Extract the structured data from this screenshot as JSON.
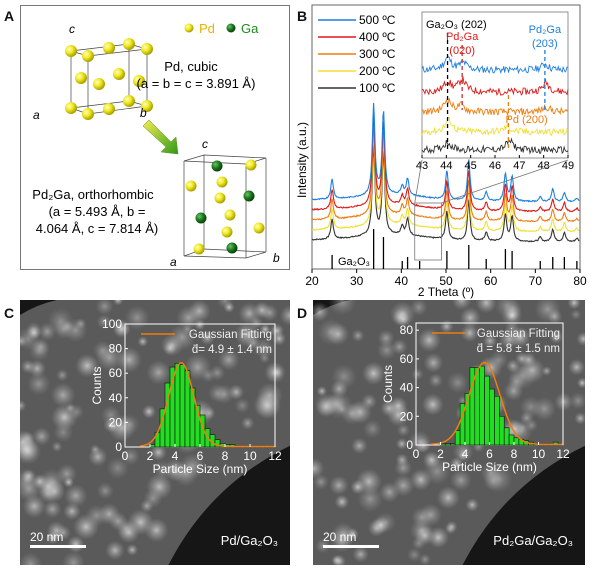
{
  "panel_labels": {
    "a": "A",
    "b": "B",
    "c": "C",
    "d": "D"
  },
  "panelA": {
    "legend": [
      {
        "label": "Pd",
        "color": "#f2d21c"
      },
      {
        "label": "Ga",
        "color": "#1e8a1e"
      }
    ],
    "pd_title": "Pd, cubic",
    "pd_params": "(a = b = c = 3.891 Å)",
    "pd2ga_title": "Pd₂Ga, orthorhombic",
    "pd2ga_params_1": "(a = 5.493 Å, b =",
    "pd2ga_params_2": "4.064 Å, c = 7.814 Å)",
    "axis_labels": {
      "a": "a",
      "b": "b",
      "c": "c"
    },
    "colors": {
      "pd": "#f2e81c",
      "ga": "#1e8a1e",
      "arrow_start": "#f0e040",
      "arrow_end": "#3a9a20"
    }
  },
  "chart_data": [
    {
      "id": "xrd",
      "type": "line",
      "title": "",
      "xlabel": "2 Theta (º)",
      "ylabel": "Intensity (a.u.)",
      "xlim": [
        20,
        80
      ],
      "xticks": [
        20,
        30,
        40,
        50,
        60,
        70,
        80
      ],
      "legend_position": "top-left",
      "series": [
        {
          "name": "500 ºC",
          "color": "#1f7fe0"
        },
        {
          "name": "400 ºC",
          "color": "#e01818"
        },
        {
          "name": "300 ºC",
          "color": "#f07d10"
        },
        {
          "name": "200 ºC",
          "color": "#f0e030"
        },
        {
          "name": "100 ºC",
          "color": "#333333"
        }
      ],
      "peaks": [
        {
          "x": 24.5,
          "h": 0.22
        },
        {
          "x": 33.8,
          "h": 1.0
        },
        {
          "x": 36.0,
          "h": 0.92
        },
        {
          "x": 40.2,
          "h": 0.1
        },
        {
          "x": 41.4,
          "h": 0.18
        },
        {
          "x": 50.2,
          "h": 0.32
        },
        {
          "x": 55.1,
          "h": 0.45
        },
        {
          "x": 59.0,
          "h": 0.1
        },
        {
          "x": 63.3,
          "h": 0.3
        },
        {
          "x": 64.8,
          "h": 0.28
        },
        {
          "x": 71.1,
          "h": 0.05
        },
        {
          "x": 73.9,
          "h": 0.14
        },
        {
          "x": 76.5,
          "h": 0.1
        },
        {
          "x": 79.3,
          "h": 0.04
        }
      ],
      "reference": {
        "name": "Ga₂O₃",
        "lines": [
          {
            "x": 24.5,
            "h": 0.35
          },
          {
            "x": 33.8,
            "h": 1.0
          },
          {
            "x": 36.0,
            "h": 0.8
          },
          {
            "x": 40.2,
            "h": 0.2
          },
          {
            "x": 41.4,
            "h": 0.3
          },
          {
            "x": 44.1,
            "h": 0.2
          },
          {
            "x": 50.2,
            "h": 0.45
          },
          {
            "x": 55.1,
            "h": 0.6
          },
          {
            "x": 59.0,
            "h": 0.25
          },
          {
            "x": 63.3,
            "h": 0.5
          },
          {
            "x": 64.8,
            "h": 0.45
          },
          {
            "x": 71.1,
            "h": 0.2
          },
          {
            "x": 73.9,
            "h": 0.3
          },
          {
            "x": 76.5,
            "h": 0.3
          },
          {
            "x": 79.3,
            "h": 0.2
          }
        ]
      },
      "zoom_box": {
        "x": [
          43,
          49
        ]
      }
    },
    {
      "id": "xrd-inset",
      "type": "line",
      "xlim": [
        43,
        49
      ],
      "xticks": [
        43,
        44,
        45,
        46,
        47,
        48,
        49
      ],
      "annotations": [
        {
          "text": "Ga₂O₃ (202)",
          "x": 44.05,
          "color": "#000000"
        },
        {
          "text": "Pd₂Ga (020)",
          "x": 44.65,
          "color": "#e01818"
        },
        {
          "text": "Pd₂Ga (203)",
          "x": 48.05,
          "color": "#1f7fe0"
        },
        {
          "text": "Pd (200)",
          "x": 46.55,
          "color": "#f07d10"
        }
      ]
    },
    {
      "id": "hist-c",
      "type": "bar",
      "xlabel": "Particle Size (nm)",
      "ylabel": "Counts",
      "xlim": [
        0,
        12
      ],
      "ylim": [
        0,
        100
      ],
      "xticks": [
        0,
        2,
        4,
        6,
        8,
        10,
        12
      ],
      "yticks": [
        0,
        20,
        40,
        60,
        80,
        100
      ],
      "bin_width": 0.4,
      "bin_starts": [
        2.0,
        2.4,
        2.8,
        3.2,
        3.6,
        4.0,
        4.4,
        4.8,
        5.2,
        5.6,
        6.0,
        6.4,
        6.8,
        7.2,
        7.6,
        8.0,
        8.4,
        8.8,
        9.2,
        9.6,
        10.0,
        10.4,
        10.8,
        11.2,
        11.6
      ],
      "values": [
        2,
        12,
        31,
        52,
        65,
        68,
        67,
        62,
        48,
        34,
        26,
        15,
        10,
        6,
        3,
        2,
        2,
        1,
        1,
        1,
        1,
        1,
        1,
        1,
        1
      ],
      "fit": {
        "name": "Gaussian Fitting",
        "mean": 4.5,
        "sigma": 1.0,
        "amp": 68,
        "color": "#f07d10"
      },
      "annotation": "d̄= 4.9 ± 1.4 nm",
      "bar_color": "#22dd22"
    },
    {
      "id": "hist-d",
      "type": "bar",
      "xlabel": "Particle Size (nm)",
      "ylabel": "Counts",
      "xlim": [
        0,
        12
      ],
      "ylim": [
        0,
        85
      ],
      "xticks": [
        0,
        2,
        4,
        6,
        8,
        10,
        12
      ],
      "yticks": [
        0,
        20,
        40,
        60,
        80
      ],
      "bin_width": 0.4,
      "bin_starts": [
        2.0,
        2.4,
        2.8,
        3.2,
        3.6,
        4.0,
        4.4,
        4.8,
        5.2,
        5.6,
        6.0,
        6.4,
        6.8,
        7.2,
        7.6,
        8.0,
        8.4,
        8.8,
        9.2,
        9.6,
        10.0,
        10.4,
        10.8,
        11.2,
        11.6
      ],
      "values": [
        1,
        1,
        1,
        10,
        29,
        36,
        54,
        54,
        55,
        48,
        39,
        34,
        20,
        12,
        7,
        5,
        4,
        3,
        2,
        1,
        1,
        1,
        1,
        2,
        1
      ],
      "fit": {
        "name": "Gaussian Fitting",
        "mean": 5.6,
        "sigma": 1.25,
        "amp": 57,
        "color": "#f07d10"
      },
      "annotation": "d̄ = 5.8 ± 1.5 nm",
      "bar_color": "#22dd22"
    }
  ],
  "panelC": {
    "scale_bar": "20 nm",
    "sample": "Pd/Ga₂O₃"
  },
  "panelD": {
    "scale_bar": "20 nm",
    "sample": "Pd₂Ga/Ga₂O₃"
  }
}
